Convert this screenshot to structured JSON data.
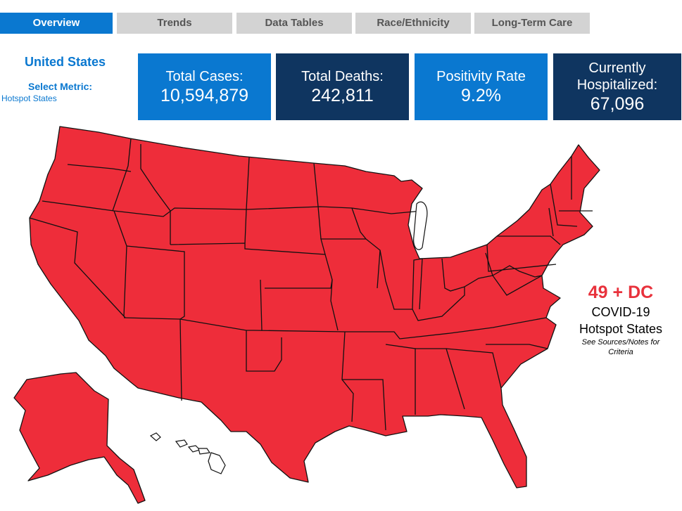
{
  "tabs": [
    {
      "label": "Overview",
      "active": true
    },
    {
      "label": "Trends",
      "active": false
    },
    {
      "label": "Data Tables",
      "active": false
    },
    {
      "label": "Race/Ethnicity",
      "active": false
    },
    {
      "label": "Long-Term Care",
      "active": false
    }
  ],
  "sidebar": {
    "country": "United States",
    "metric_label": "Select Metric:",
    "metric_value": "Hotspot States"
  },
  "cards": [
    {
      "label": "Total Cases:",
      "value": "10,594,879"
    },
    {
      "label": "Total Deaths:",
      "value": "242,811"
    },
    {
      "label": "Positivity Rate",
      "value": "9.2%"
    },
    {
      "label": "Currently Hospitalized:",
      "value": "67,096"
    }
  ],
  "annotation": {
    "count": "49 + DC",
    "line1": "COVID-19",
    "line2": "Hotspot States",
    "note": "See Sources/Notes for Criteria"
  },
  "colors": {
    "accent_blue": "#0a78d0",
    "dark_blue": "#0f3560",
    "hotspot_red": "#ee2d3a",
    "tab_gray": "#d3d3d3"
  }
}
